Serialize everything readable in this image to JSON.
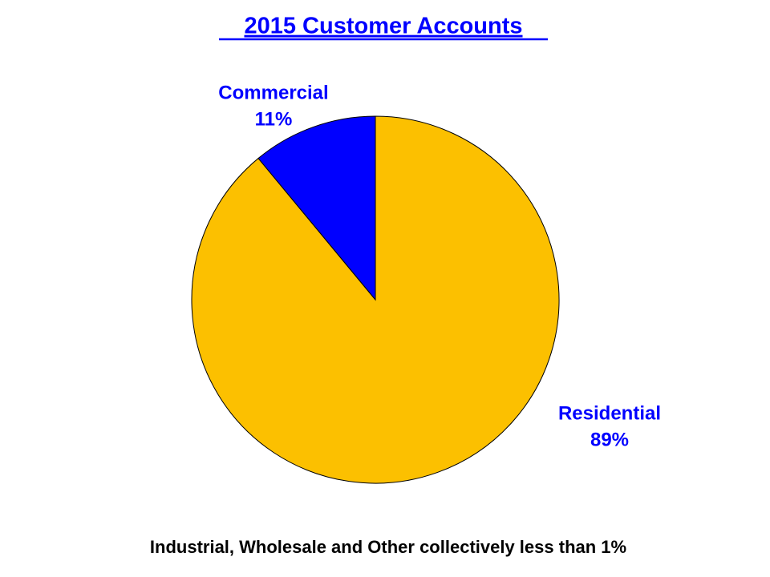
{
  "chart_data": {
    "type": "pie",
    "title": "2015 Customer Accounts",
    "categories": [
      "Residential",
      "Commercial"
    ],
    "values": [
      89,
      11
    ],
    "value_labels": [
      "89%",
      "11%"
    ],
    "colors": [
      "#fcc000",
      "#0000ff"
    ],
    "annotation": "Industrial, Wholesale and Other collectively less than 1%"
  }
}
